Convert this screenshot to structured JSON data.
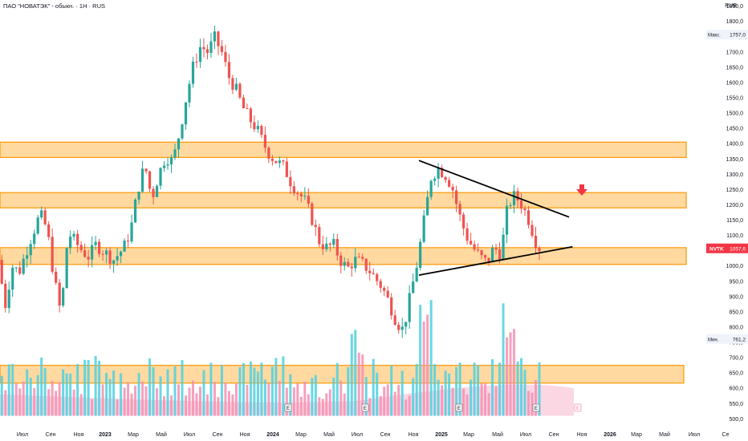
{
  "header": {
    "title": "ПАО \"НОВАТЭК\" - обыкн. · 1Н · RUS",
    "currency": "RUB"
  },
  "price_tag": {
    "symbol": "NVTK",
    "value": "1057,6"
  },
  "max_label": {
    "text": "Макс.",
    "value": "1757,0"
  },
  "min_label": {
    "text": "Мин.",
    "value": "761,2"
  },
  "colors": {
    "up": "#26a69a",
    "down": "#ef5350",
    "zone_fill": "#ffcc80",
    "zone_stroke": "#ff9800",
    "vol_up": "#4dd0e1",
    "vol_down": "#f48fb1",
    "arrow": "#f23645"
  },
  "chart_data": {
    "type": "candlestick",
    "ylim": [
      480,
      1870
    ],
    "y_ticks": [
      500,
      550,
      600,
      650,
      700,
      750,
      800,
      850,
      900,
      950,
      1000,
      1050,
      1100,
      1150,
      1200,
      1250,
      1300,
      1350,
      1400,
      1450,
      1500,
      1550,
      1600,
      1650,
      1700,
      1750,
      1800,
      1850
    ],
    "y_tick_labels": [
      "500,0",
      "550,0",
      "600,0",
      "650,0",
      "700,0",
      "750,0",
      "800,0",
      "850,0",
      "900,0",
      "950,0",
      "1000,0",
      "1050,0",
      "1100,0",
      "1150,0",
      "1200,0",
      "1250,0",
      "1300,0",
      "1350,0",
      "1400,0",
      "1450,0",
      "1500,0",
      "1550,0",
      "1600,0",
      "1650,0",
      "1700,0",
      "1750,0",
      "1800,0",
      "1850,0"
    ],
    "x_tick_labels": [
      "Июл",
      "Сен",
      "Ноя",
      "2023",
      "Мар",
      "Май",
      "Июл",
      "Сен",
      "Ноя",
      "2024",
      "Мар",
      "Май",
      "Июл",
      "Сен",
      "Ноя",
      "2025",
      "Мар",
      "Май",
      "Июл",
      "Сен",
      "Ноя",
      "2026",
      "Мар",
      "Май",
      "Июл",
      "Се"
    ],
    "zones": [
      {
        "from": 1355,
        "to": 1405
      },
      {
        "from": 1190,
        "to": 1240
      },
      {
        "from": 1005,
        "to": 1060
      },
      {
        "from": 617,
        "to": 675
      }
    ],
    "trendlines": [
      {
        "from": [
          0.6,
          1345
        ],
        "to": [
          0.815,
          1160
        ]
      },
      {
        "from": [
          0.6,
          970
        ],
        "to": [
          0.82,
          1063
        ]
      }
    ],
    "price_path": [
      [
        0.0,
        1020
      ],
      [
        0.01,
        870
      ],
      [
        0.02,
        1000
      ],
      [
        0.03,
        980
      ],
      [
        0.045,
        1080
      ],
      [
        0.06,
        1170
      ],
      [
        0.07,
        1120
      ],
      [
        0.08,
        960
      ],
      [
        0.09,
        840
      ],
      [
        0.1,
        1110
      ],
      [
        0.11,
        1080
      ],
      [
        0.12,
        1050
      ],
      [
        0.13,
        1030
      ],
      [
        0.14,
        1070
      ],
      [
        0.155,
        1040
      ],
      [
        0.165,
        1020
      ],
      [
        0.18,
        1060
      ],
      [
        0.19,
        1120
      ],
      [
        0.2,
        1250
      ],
      [
        0.21,
        1330
      ],
      [
        0.22,
        1220
      ],
      [
        0.23,
        1300
      ],
      [
        0.24,
        1360
      ],
      [
        0.25,
        1340
      ],
      [
        0.26,
        1440
      ],
      [
        0.27,
        1560
      ],
      [
        0.28,
        1660
      ],
      [
        0.29,
        1720
      ],
      [
        0.3,
        1700
      ],
      [
        0.31,
        1745
      ],
      [
        0.32,
        1700
      ],
      [
        0.33,
        1620
      ],
      [
        0.34,
        1580
      ],
      [
        0.35,
        1520
      ],
      [
        0.36,
        1480
      ],
      [
        0.37,
        1450
      ],
      [
        0.38,
        1400
      ],
      [
        0.39,
        1360
      ],
      [
        0.4,
        1340
      ],
      [
        0.41,
        1320
      ],
      [
        0.42,
        1270
      ],
      [
        0.43,
        1240
      ],
      [
        0.44,
        1210
      ],
      [
        0.45,
        1150
      ],
      [
        0.46,
        1080
      ],
      [
        0.47,
        1060
      ],
      [
        0.48,
        1070
      ],
      [
        0.49,
        1020
      ],
      [
        0.5,
        990
      ],
      [
        0.51,
        1020
      ],
      [
        0.52,
        1010
      ],
      [
        0.53,
        990
      ],
      [
        0.54,
        960
      ],
      [
        0.55,
        930
      ],
      [
        0.56,
        880
      ],
      [
        0.57,
        820
      ],
      [
        0.58,
        790
      ],
      [
        0.59,
        900
      ],
      [
        0.6,
        1010
      ],
      [
        0.61,
        1150
      ],
      [
        0.62,
        1290
      ],
      [
        0.63,
        1320
      ],
      [
        0.64,
        1300
      ],
      [
        0.65,
        1260
      ],
      [
        0.66,
        1170
      ],
      [
        0.67,
        1100
      ],
      [
        0.68,
        1060
      ],
      [
        0.69,
        1030
      ],
      [
        0.7,
        1010
      ],
      [
        0.71,
        1060
      ],
      [
        0.72,
        1040
      ],
      [
        0.73,
        1200
      ],
      [
        0.74,
        1230
      ],
      [
        0.75,
        1200
      ],
      [
        0.76,
        1150
      ],
      [
        0.77,
        1080
      ],
      [
        0.775,
        1060
      ]
    ]
  }
}
